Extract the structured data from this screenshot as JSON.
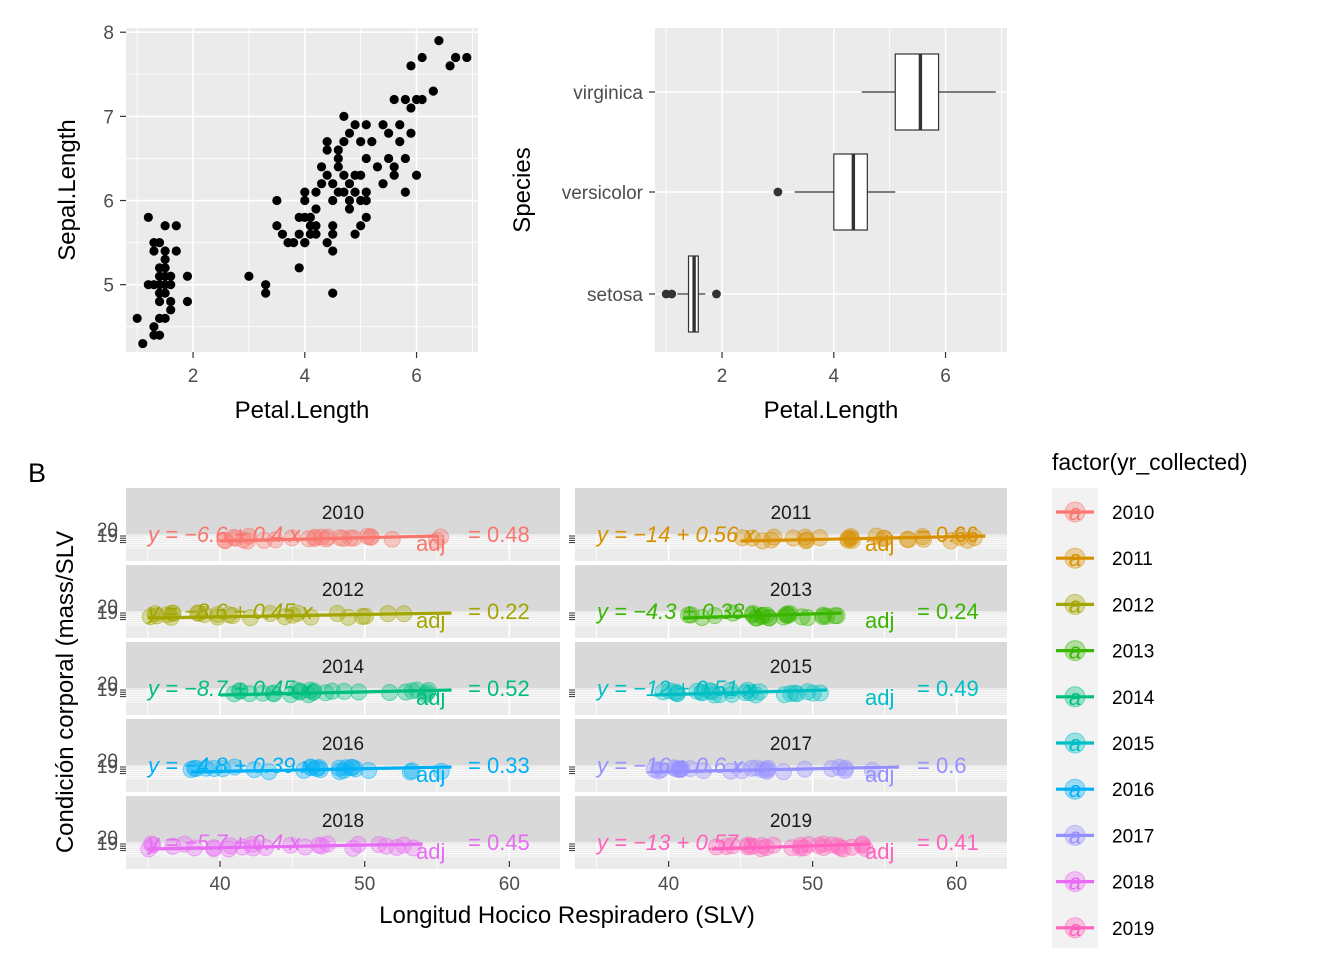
{
  "chart_data": [
    {
      "type": "scatter",
      "xlabel": "Petal.Length",
      "ylabel": "Sepal.Length",
      "xlim": [
        0.8,
        7.1
      ],
      "ylim": [
        4.2,
        8.05
      ],
      "x_ticks": [
        "2",
        "4",
        "6"
      ],
      "y_ticks": [
        "5",
        "6",
        "7",
        "8"
      ],
      "grid": true,
      "points": [
        [
          1.0,
          4.6
        ],
        [
          1.1,
          4.3
        ],
        [
          1.2,
          5.8
        ],
        [
          1.2,
          5.0
        ],
        [
          1.3,
          4.4
        ],
        [
          1.3,
          5.5
        ],
        [
          1.3,
          4.5
        ],
        [
          1.3,
          5.0
        ],
        [
          1.3,
          5.4
        ],
        [
          1.4,
          5.1
        ],
        [
          1.4,
          4.9
        ],
        [
          1.4,
          4.6
        ],
        [
          1.4,
          5.0
        ],
        [
          1.4,
          4.4
        ],
        [
          1.4,
          5.2
        ],
        [
          1.4,
          5.5
        ],
        [
          1.4,
          4.8
        ],
        [
          1.5,
          5.4
        ],
        [
          1.5,
          4.6
        ],
        [
          1.5,
          5.7
        ],
        [
          1.5,
          5.1
        ],
        [
          1.5,
          5.0
        ],
        [
          1.5,
          5.3
        ],
        [
          1.5,
          5.2
        ],
        [
          1.5,
          4.9
        ],
        [
          1.6,
          5.0
        ],
        [
          1.6,
          4.7
        ],
        [
          1.6,
          4.8
        ],
        [
          1.6,
          5.1
        ],
        [
          1.7,
          5.7
        ],
        [
          1.7,
          5.4
        ],
        [
          1.9,
          5.1
        ],
        [
          1.9,
          4.8
        ],
        [
          3.0,
          5.1
        ],
        [
          3.3,
          4.9
        ],
        [
          3.3,
          5.0
        ],
        [
          3.5,
          5.7
        ],
        [
          3.5,
          6.0
        ],
        [
          3.6,
          5.6
        ],
        [
          3.7,
          5.5
        ],
        [
          3.8,
          5.5
        ],
        [
          3.9,
          5.6
        ],
        [
          3.9,
          5.2
        ],
        [
          3.9,
          5.8
        ],
        [
          4.0,
          5.5
        ],
        [
          4.0,
          6.1
        ],
        [
          4.0,
          6.0
        ],
        [
          4.0,
          5.8
        ],
        [
          4.0,
          5.5
        ],
        [
          4.1,
          5.7
        ],
        [
          4.1,
          5.6
        ],
        [
          4.1,
          5.8
        ],
        [
          4.2,
          5.7
        ],
        [
          4.2,
          5.9
        ],
        [
          4.2,
          5.6
        ],
        [
          4.3,
          6.4
        ],
        [
          4.3,
          6.2
        ],
        [
          4.4,
          6.3
        ],
        [
          4.4,
          6.7
        ],
        [
          4.4,
          5.5
        ],
        [
          4.4,
          6.6
        ],
        [
          4.5,
          5.7
        ],
        [
          4.5,
          6.2
        ],
        [
          4.5,
          5.6
        ],
        [
          4.5,
          6.0
        ],
        [
          4.5,
          5.4
        ],
        [
          4.5,
          4.9
        ],
        [
          4.6,
          6.5
        ],
        [
          4.6,
          6.6
        ],
        [
          4.6,
          6.1
        ],
        [
          4.7,
          7.0
        ],
        [
          4.7,
          6.1
        ],
        [
          4.7,
          6.7
        ],
        [
          4.7,
          6.3
        ],
        [
          4.8,
          6.8
        ],
        [
          4.8,
          5.9
        ],
        [
          4.8,
          6.0
        ],
        [
          4.8,
          6.2
        ],
        [
          4.9,
          6.9
        ],
        [
          4.9,
          6.3
        ],
        [
          4.9,
          6.1
        ],
        [
          4.9,
          5.6
        ],
        [
          5.0,
          6.7
        ],
        [
          5.0,
          5.7
        ],
        [
          5.0,
          6.0
        ],
        [
          5.0,
          6.3
        ],
        [
          5.1,
          5.8
        ],
        [
          5.1,
          6.5
        ],
        [
          5.1,
          6.9
        ],
        [
          5.1,
          6.0
        ],
        [
          5.2,
          6.7
        ],
        [
          5.3,
          6.4
        ],
        [
          5.4,
          6.9
        ],
        [
          5.4,
          6.2
        ],
        [
          5.5,
          6.8
        ],
        [
          5.5,
          6.5
        ],
        [
          5.6,
          6.3
        ],
        [
          5.6,
          6.4
        ],
        [
          5.7,
          6.9
        ],
        [
          5.7,
          6.7
        ],
        [
          5.8,
          6.5
        ],
        [
          5.8,
          7.2
        ],
        [
          5.9,
          7.1
        ],
        [
          5.9,
          6.8
        ],
        [
          6.0,
          7.2
        ],
        [
          6.0,
          6.3
        ],
        [
          6.1,
          7.2
        ],
        [
          6.1,
          7.7
        ],
        [
          6.3,
          7.3
        ],
        [
          6.4,
          7.9
        ],
        [
          6.6,
          7.6
        ],
        [
          6.7,
          7.7
        ],
        [
          6.9,
          7.7
        ],
        [
          5.8,
          6.1
        ],
        [
          5.6,
          7.2
        ],
        [
          4.2,
          6.1
        ],
        [
          4.6,
          6.4
        ],
        [
          5.1,
          6.1
        ],
        [
          5.9,
          7.6
        ],
        [
          6.7,
          7.7
        ]
      ]
    },
    {
      "type": "box",
      "xlabel": "Petal.Length",
      "ylabel": "Species",
      "xlim": [
        0.8,
        7.1
      ],
      "x_ticks": [
        "2",
        "4",
        "6"
      ],
      "categories": [
        "virginica",
        "versicolor",
        "setosa"
      ],
      "boxes": [
        {
          "name": "virginica",
          "whisker_low": 4.5,
          "q1": 5.1,
          "median": 5.55,
          "q3": 5.875,
          "whisker_high": 6.9,
          "outliers": []
        },
        {
          "name": "versicolor",
          "whisker_low": 3.3,
          "q1": 4.0,
          "median": 4.35,
          "q3": 4.6,
          "whisker_high": 5.1,
          "outliers": [
            3.0
          ]
        },
        {
          "name": "setosa",
          "whisker_low": 1.2,
          "q1": 1.4,
          "median": 1.5,
          "q3": 1.575,
          "whisker_high": 1.7,
          "outliers": [
            1.0,
            1.1,
            1.9
          ]
        }
      ]
    },
    {
      "type": "scatter",
      "tag": "B",
      "xlabel": "Longitud Hocico Respiradero (SLV)",
      "ylabel": "Condición corporal (mass/SLV",
      "xlim": [
        33.5,
        63.5
      ],
      "x_ticks": [
        "40",
        "50",
        "60"
      ],
      "y_ticks": [
        "20",
        "19"
      ],
      "legend_title": "factor(yr_collected)",
      "legend_position": "right",
      "legend_key_glyph": "a",
      "series": [
        {
          "name": "2010",
          "color": "#F8766D",
          "x_range": [
            39,
            56
          ],
          "fit": [
            40,
            55
          ],
          "eq_left": "y = −6.6 + 0.4 x",
          "eq_right": "= 0.48",
          "adj": "adj"
        },
        {
          "name": "2011",
          "color": "#D89000",
          "x_range": [
            45,
            62
          ],
          "fit": [
            45,
            62
          ],
          "eq_left": "y = −14 + 0.56 x",
          "eq_right": "= 0.66",
          "adj": "adj"
        },
        {
          "name": "2012",
          "color": "#A3A500",
          "x_range": [
            35,
            56
          ],
          "fit": [
            35,
            56
          ],
          "eq_left": "y = −8.6 + 0.45 x",
          "eq_right": "= 0.22",
          "adj": "adj"
        },
        {
          "name": "2013",
          "color": "#39B600",
          "x_range": [
            41,
            52
          ],
          "fit": [
            41,
            52
          ],
          "eq_left": "y = −4.3 + 0.38 x",
          "eq_right": "= 0.24",
          "adj": "adj"
        },
        {
          "name": "2014",
          "color": "#00BF7D",
          "x_range": [
            40,
            56
          ],
          "fit": [
            40,
            56
          ],
          "eq_left": "y = −8.7 + 0.45 x",
          "eq_right": "= 0.52",
          "adj": "adj"
        },
        {
          "name": "2015",
          "color": "#00BFC4",
          "x_range": [
            39,
            51
          ],
          "fit": [
            39,
            51
          ],
          "eq_left": "y = −12 + 0.51 x",
          "eq_right": "= 0.49",
          "adj": "adj"
        },
        {
          "name": "2016",
          "color": "#00B0F6",
          "x_range": [
            38,
            56
          ],
          "fit": [
            38,
            56
          ],
          "eq_left": "y = −4.8 + 0.39 x",
          "eq_right": "= 0.33",
          "adj": "adj"
        },
        {
          "name": "2017",
          "color": "#9590FF",
          "x_range": [
            39,
            56
          ],
          "fit": [
            39,
            56
          ],
          "eq_left": "y = −16 + 0.6 x",
          "eq_right": "= 0.6",
          "adj": "adj"
        },
        {
          "name": "2018",
          "color": "#E76BF3",
          "x_range": [
            35,
            54
          ],
          "fit": [
            35,
            54
          ],
          "eq_left": "y = −5.7 + 0.4 x",
          "eq_right": "= 0.45",
          "adj": "adj"
        },
        {
          "name": "2019",
          "color": "#FF62BC",
          "x_range": [
            43,
            54
          ],
          "fit": [
            43,
            54
          ],
          "eq_left": "y = −13 + 0.57 x",
          "eq_right": "= 0.41",
          "adj": "adj"
        }
      ]
    }
  ]
}
